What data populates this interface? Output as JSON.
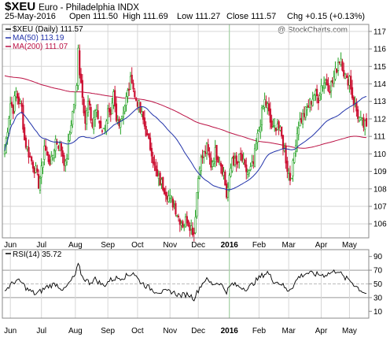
{
  "header": {
    "symbol": "$XEU",
    "name": "Euro - Philadelphia INDX",
    "date": "25-May-2016",
    "open": "Open 111.50",
    "high": "High 111.69",
    "low": "Low 111.27",
    "close": "Close 111.57",
    "chg": "Chg +0.15 (+0.13%)",
    "credit": "@ StockCharts.com"
  },
  "colors": {
    "up": "#22a022",
    "down": "#cc1133",
    "ma50": "#2233aa",
    "ma200": "#bb1144",
    "grid": "#d6d6d6",
    "panel_border": "#888888"
  },
  "chart_data": [
    {
      "type": "candlestick",
      "panel": "price",
      "legend_position": "top-left",
      "legend": [
        {
          "label": "$XEU (Daily) 111.57",
          "color": "#000000"
        },
        {
          "label": "MA(50) 113.19",
          "color": "#2233aa"
        },
        {
          "label": "MA(200) 111.07",
          "color": "#bb1144"
        }
      ],
      "x_tick_labels": [
        "Jun",
        "Jul",
        "Aug",
        "Sep",
        "Oct",
        "Nov",
        "Dec",
        "2016",
        "Feb",
        "Mar",
        "Apr",
        "May"
      ],
      "x_ticks_day_index": [
        4,
        26,
        50,
        73,
        94,
        117,
        137,
        159,
        180,
        201,
        224,
        244
      ],
      "year_divider_index": 159,
      "y_tick_labels": [
        "106",
        "107",
        "108",
        "109",
        "110",
        "111",
        "112",
        "113",
        "114",
        "115",
        "116",
        "117"
      ],
      "ylim": [
        105.2,
        117.4
      ],
      "day_count": 257,
      "close_anchors": [
        [
          0,
          110.2
        ],
        [
          2,
          111.5
        ],
        [
          4,
          112.9
        ],
        [
          6,
          112.6
        ],
        [
          8,
          113.5
        ],
        [
          10,
          113.0
        ],
        [
          12,
          112.6
        ],
        [
          14,
          110.8
        ],
        [
          18,
          109.8
        ],
        [
          22,
          109.0
        ],
        [
          24,
          108.3
        ],
        [
          26,
          109.0
        ],
        [
          28,
          110.5
        ],
        [
          30,
          109.8
        ],
        [
          33,
          109.5
        ],
        [
          36,
          110.8
        ],
        [
          40,
          110.3
        ],
        [
          43,
          109.3
        ],
        [
          45,
          110.5
        ],
        [
          47,
          111.8
        ],
        [
          49,
          112.9
        ],
        [
          51,
          113.8
        ],
        [
          52,
          116.3
        ],
        [
          53,
          114.7
        ],
        [
          55,
          113.5
        ],
        [
          57,
          111.8
        ],
        [
          59,
          112.9
        ],
        [
          62,
          111.6
        ],
        [
          64,
          112.5
        ],
        [
          67,
          111.8
        ],
        [
          70,
          111.3
        ],
        [
          73,
          112.4
        ],
        [
          75,
          111.9
        ],
        [
          77,
          113.3
        ],
        [
          79,
          111.8
        ],
        [
          82,
          112.0
        ],
        [
          85,
          112.8
        ],
        [
          88,
          113.8
        ],
        [
          90,
          114.4
        ],
        [
          92,
          113.2
        ],
        [
          94,
          113.0
        ],
        [
          96,
          112.4
        ],
        [
          98,
          111.9
        ],
        [
          100,
          111.3
        ],
        [
          102,
          110.6
        ],
        [
          104,
          110.2
        ],
        [
          106,
          109.2
        ],
        [
          108,
          108.6
        ],
        [
          111,
          108.3
        ],
        [
          114,
          107.9
        ],
        [
          117,
          107.4
        ],
        [
          120,
          107.1
        ],
        [
          123,
          106.4
        ],
        [
          126,
          106.0
        ],
        [
          129,
          106.3
        ],
        [
          132,
          105.8
        ],
        [
          134,
          105.5
        ],
        [
          136,
          107.8
        ],
        [
          138,
          109.5
        ],
        [
          140,
          109.8
        ],
        [
          143,
          110.3
        ],
        [
          146,
          109.4
        ],
        [
          149,
          110.1
        ],
        [
          152,
          109.7
        ],
        [
          155,
          108.9
        ],
        [
          157,
          107.6
        ],
        [
          159,
          108.5
        ],
        [
          161,
          109.8
        ],
        [
          164,
          109.3
        ],
        [
          167,
          109.9
        ],
        [
          170,
          109.1
        ],
        [
          173,
          108.9
        ],
        [
          176,
          109.4
        ],
        [
          178,
          110.5
        ],
        [
          180,
          111.4
        ],
        [
          182,
          112.3
        ],
        [
          184,
          113.0
        ],
        [
          186,
          112.7
        ],
        [
          188,
          111.8
        ],
        [
          190,
          111.3
        ],
        [
          193,
          111.8
        ],
        [
          196,
          110.9
        ],
        [
          198,
          110.2
        ],
        [
          200,
          109.2
        ],
        [
          202,
          108.6
        ],
        [
          204,
          109.3
        ],
        [
          206,
          110.8
        ],
        [
          208,
          111.7
        ],
        [
          210,
          112.0
        ],
        [
          213,
          112.4
        ],
        [
          216,
          112.9
        ],
        [
          219,
          113.4
        ],
        [
          222,
          113.2
        ],
        [
          224,
          113.9
        ],
        [
          227,
          114.2
        ],
        [
          230,
          113.8
        ],
        [
          232,
          114.1
        ],
        [
          234,
          114.6
        ],
        [
          236,
          115.3
        ],
        [
          238,
          115.5
        ],
        [
          240,
          114.7
        ],
        [
          242,
          114.1
        ],
        [
          244,
          114.4
        ],
        [
          246,
          113.3
        ],
        [
          248,
          112.7
        ],
        [
          250,
          112.2
        ],
        [
          252,
          111.8
        ],
        [
          254,
          111.6
        ],
        [
          256,
          111.57
        ]
      ]
    },
    {
      "type": "line",
      "panel": "indicator",
      "legend": [
        {
          "label": "RSI(14) 35.72",
          "color": "#000000"
        }
      ],
      "x_tick_labels": [
        "Jun",
        "Jul",
        "Aug",
        "Sep",
        "Oct",
        "Nov",
        "Dec",
        "2016",
        "Feb",
        "Mar",
        "Apr",
        "May"
      ],
      "y_tick_labels": [
        "10",
        "30",
        "50",
        "70",
        "90"
      ],
      "ylim": [
        0,
        100
      ],
      "reference_lines": [
        30,
        50,
        70
      ],
      "day_count": 257,
      "series_anchors": [
        [
          0,
          40
        ],
        [
          4,
          48
        ],
        [
          8,
          55
        ],
        [
          12,
          52
        ],
        [
          16,
          42
        ],
        [
          22,
          35
        ],
        [
          26,
          40
        ],
        [
          30,
          46
        ],
        [
          36,
          50
        ],
        [
          42,
          41
        ],
        [
          46,
          52
        ],
        [
          50,
          63
        ],
        [
          52,
          78
        ],
        [
          55,
          60
        ],
        [
          60,
          52
        ],
        [
          64,
          57
        ],
        [
          70,
          47
        ],
        [
          74,
          55
        ],
        [
          78,
          58
        ],
        [
          84,
          60
        ],
        [
          88,
          63
        ],
        [
          91,
          67
        ],
        [
          95,
          55
        ],
        [
          100,
          47
        ],
        [
          106,
          40
        ],
        [
          112,
          38
        ],
        [
          118,
          39
        ],
        [
          124,
          33
        ],
        [
          130,
          35
        ],
        [
          134,
          29
        ],
        [
          138,
          45
        ],
        [
          142,
          57
        ],
        [
          147,
          50
        ],
        [
          152,
          52
        ],
        [
          157,
          39
        ],
        [
          161,
          50
        ],
        [
          166,
          46
        ],
        [
          172,
          43
        ],
        [
          178,
          55
        ],
        [
          182,
          62
        ],
        [
          186,
          67
        ],
        [
          190,
          55
        ],
        [
          196,
          50
        ],
        [
          200,
          40
        ],
        [
          204,
          47
        ],
        [
          208,
          60
        ],
        [
          214,
          66
        ],
        [
          220,
          64
        ],
        [
          226,
          63
        ],
        [
          232,
          67
        ],
        [
          236,
          70
        ],
        [
          240,
          59
        ],
        [
          244,
          56
        ],
        [
          248,
          48
        ],
        [
          252,
          41
        ],
        [
          256,
          36
        ]
      ]
    }
  ]
}
